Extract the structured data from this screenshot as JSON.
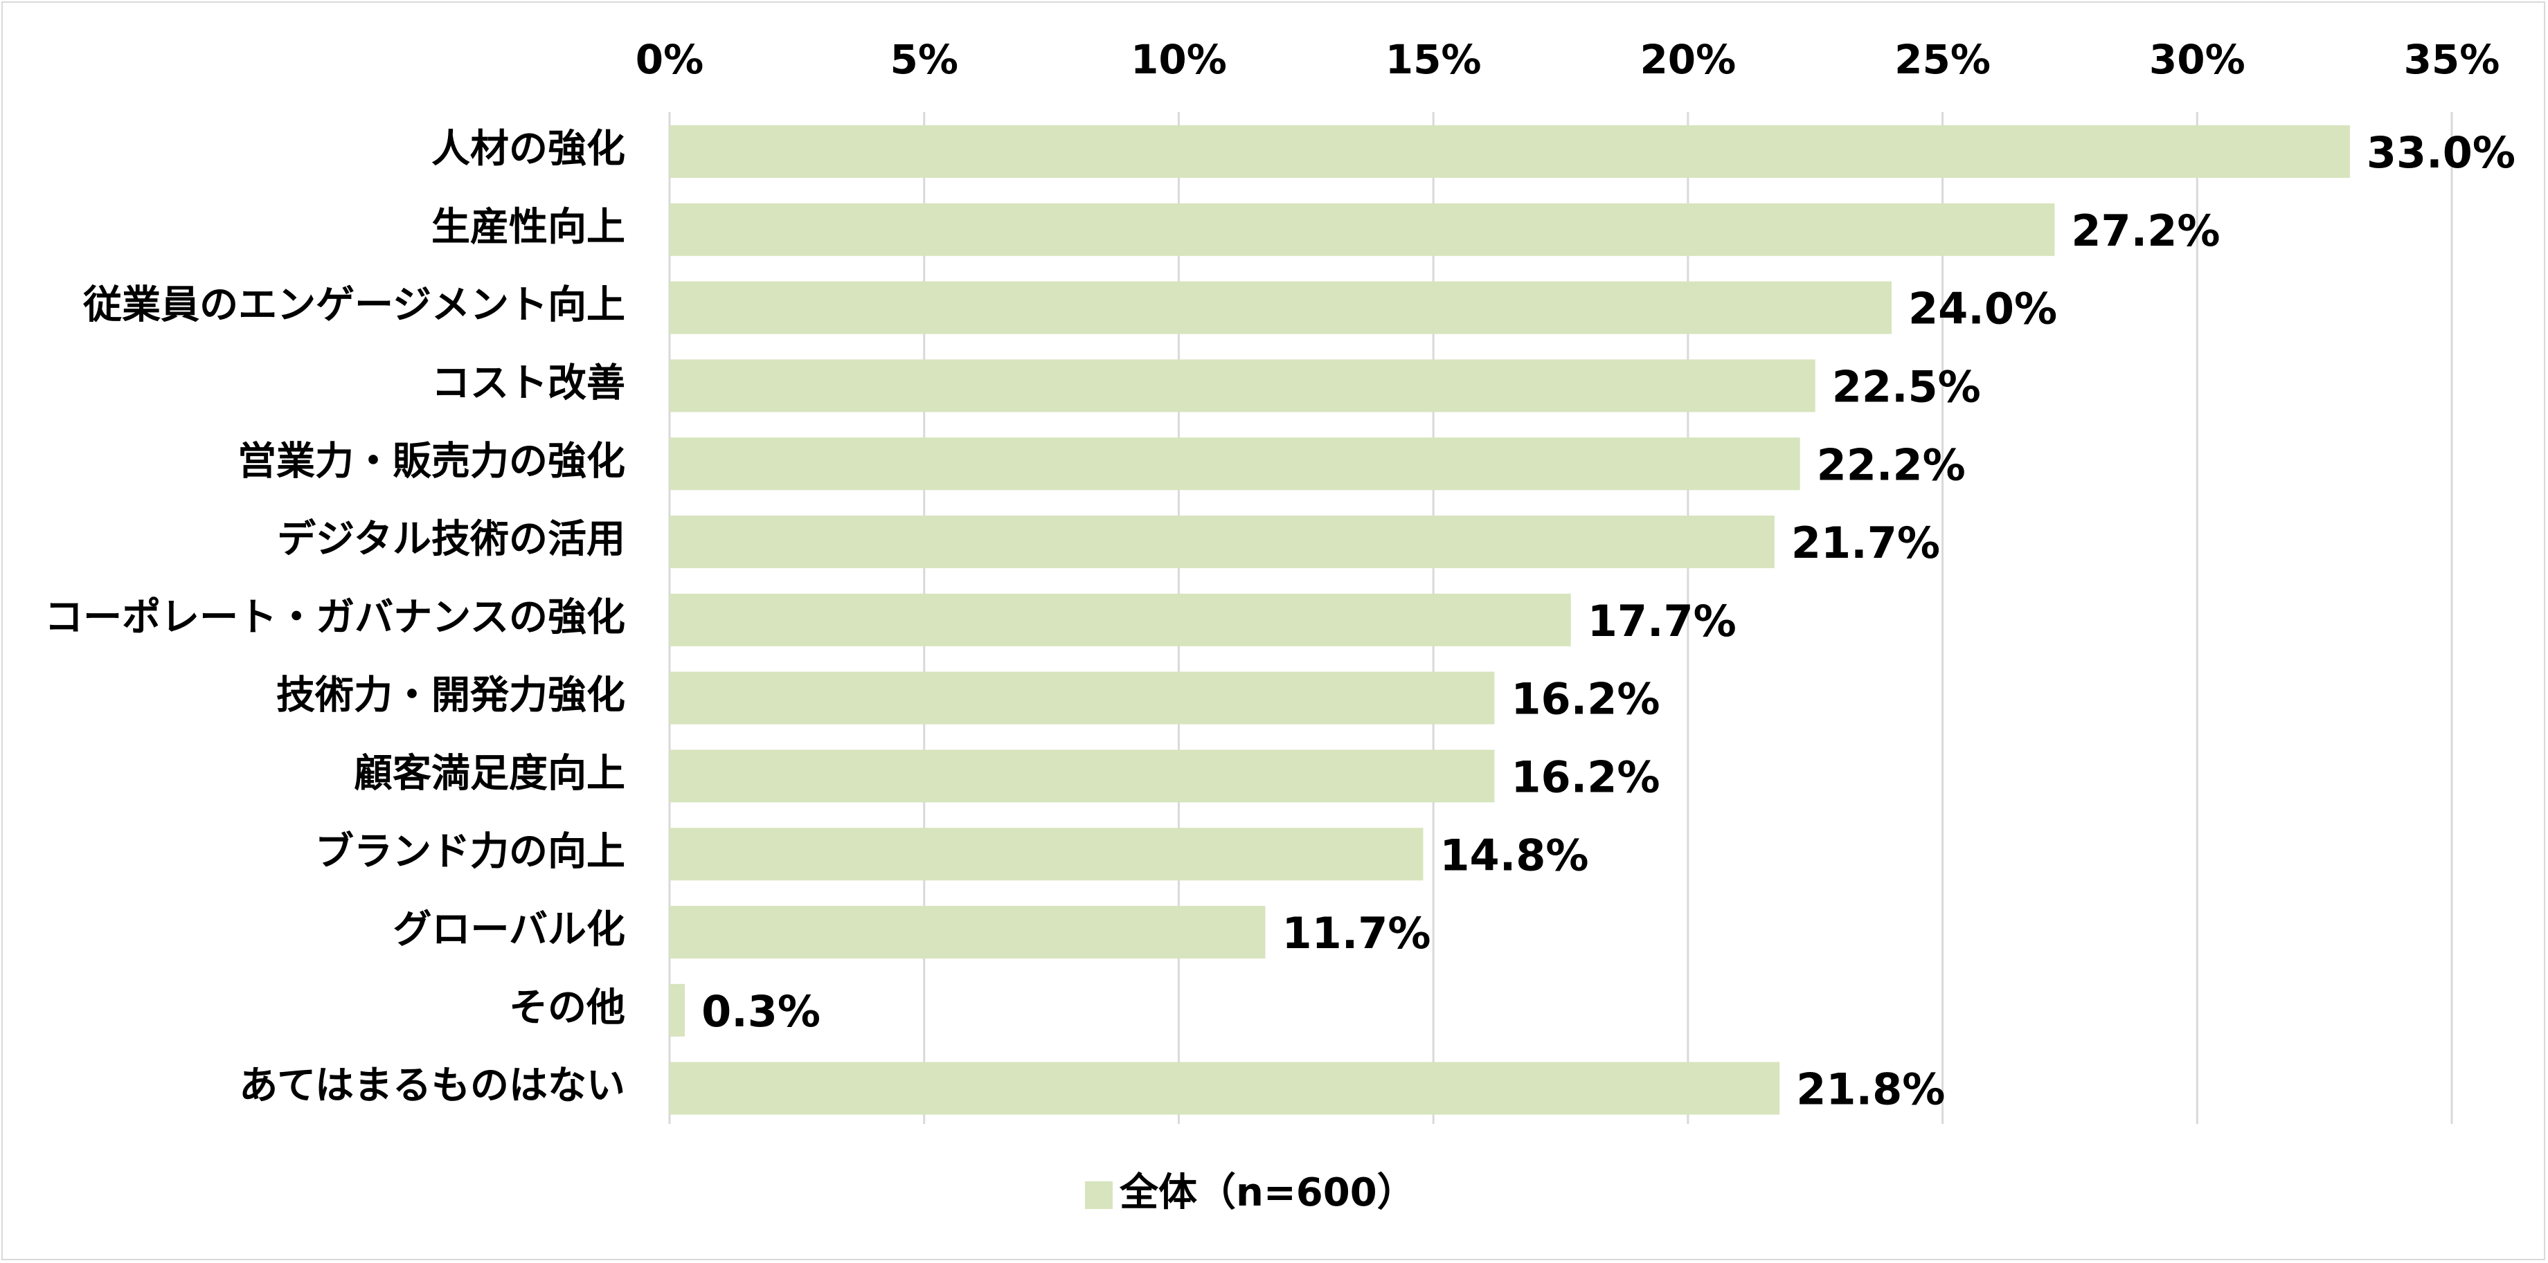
{
  "chart_data": {
    "type": "bar",
    "orientation": "horizontal",
    "title": "",
    "xlabel": "",
    "ylabel": "",
    "xlim": [
      0,
      35
    ],
    "x_ticks": [
      0,
      5,
      10,
      15,
      20,
      25,
      30,
      35
    ],
    "x_tick_labels": [
      "0%",
      "5%",
      "10%",
      "15%",
      "20%",
      "25%",
      "30%",
      "35%"
    ],
    "x_axis_position": "top",
    "grid": "vertical",
    "legend_position": "bottom",
    "bar_color": "#d7e4bd",
    "grid_color": "#d9d9d9",
    "categories": [
      "人材の強化",
      "生産性向上",
      "従業員のエンゲージメント向上",
      "コスト改善",
      "営業力・販売力の強化",
      "デジタル技術の活用",
      "コーポレート・ガバナンスの強化",
      "技術力・開発力強化",
      "顧客満足度向上",
      "ブランド力の向上",
      "グローバル化",
      "その他",
      "あてはまるものはない"
    ],
    "series": [
      {
        "name": "全体（n=600）",
        "values": [
          33.0,
          27.2,
          24.0,
          22.5,
          22.2,
          21.7,
          17.7,
          16.2,
          16.2,
          14.8,
          11.7,
          0.3,
          21.8
        ],
        "labels": [
          "33.0%",
          "27.2%",
          "24.0%",
          "22.5%",
          "22.2%",
          "21.7%",
          "17.7%",
          "16.2%",
          "16.2%",
          "14.8%",
          "11.7%",
          "0.3%",
          "21.8%"
        ]
      }
    ]
  }
}
